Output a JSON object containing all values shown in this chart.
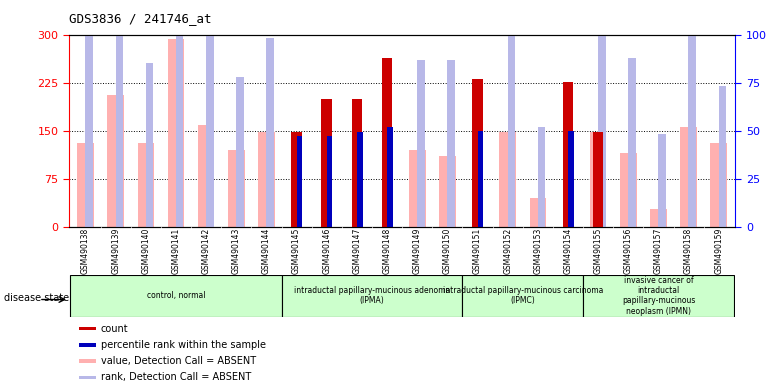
{
  "title": "GDS3836 / 241746_at",
  "samples": [
    "GSM490138",
    "GSM490139",
    "GSM490140",
    "GSM490141",
    "GSM490142",
    "GSM490143",
    "GSM490144",
    "GSM490145",
    "GSM490146",
    "GSM490147",
    "GSM490148",
    "GSM490149",
    "GSM490150",
    "GSM490151",
    "GSM490152",
    "GSM490153",
    "GSM490154",
    "GSM490155",
    "GSM490156",
    "GSM490157",
    "GSM490158",
    "GSM490159"
  ],
  "count": [
    null,
    null,
    null,
    null,
    null,
    null,
    null,
    148,
    200,
    200,
    263,
    null,
    null,
    230,
    null,
    null,
    226,
    148,
    null,
    null,
    null,
    null
  ],
  "percentile_rank": [
    null,
    null,
    null,
    null,
    null,
    null,
    null,
    141,
    141,
    148,
    155,
    null,
    null,
    150,
    null,
    null,
    150,
    null,
    null,
    null,
    null,
    null
  ],
  "value_absent": [
    130,
    205,
    130,
    293,
    158,
    120,
    148,
    null,
    null,
    null,
    null,
    120,
    110,
    null,
    148,
    45,
    null,
    148,
    115,
    28,
    155,
    130
  ],
  "rank_absent": [
    125,
    125,
    85,
    100,
    112,
    78,
    98,
    null,
    null,
    null,
    null,
    87,
    87,
    null,
    112,
    52,
    null,
    108,
    88,
    48,
    130,
    73
  ],
  "count_color": "#cc0000",
  "percentile_color": "#0000bb",
  "value_absent_color": "#ffb0b0",
  "rank_absent_color": "#b8b8e8",
  "left_ylim": [
    0,
    300
  ],
  "right_ylim": [
    0,
    100
  ],
  "left_yticks": [
    0,
    75,
    150,
    225,
    300
  ],
  "right_yticks": [
    0,
    25,
    50,
    75,
    100
  ],
  "group_boundaries": [
    0,
    7,
    13,
    17,
    22
  ],
  "group_labels": [
    "control, normal",
    "intraductal papillary-mucinous adenoma\n(IPMA)",
    "intraductal papillary-mucinous carcinoma\n(IPMC)",
    "invasive cancer of\nintraductal\npapillary-mucinous\nneoplasm (IPMN)"
  ],
  "group_color": "#ccffcc",
  "legend_items": [
    {
      "label": "count",
      "color": "#cc0000"
    },
    {
      "label": "percentile rank within the sample",
      "color": "#0000bb"
    },
    {
      "label": "value, Detection Call = ABSENT",
      "color": "#ffb0b0"
    },
    {
      "label": "rank, Detection Call = ABSENT",
      "color": "#b8b8e8"
    }
  ],
  "bg_color": "#e8e8e8"
}
